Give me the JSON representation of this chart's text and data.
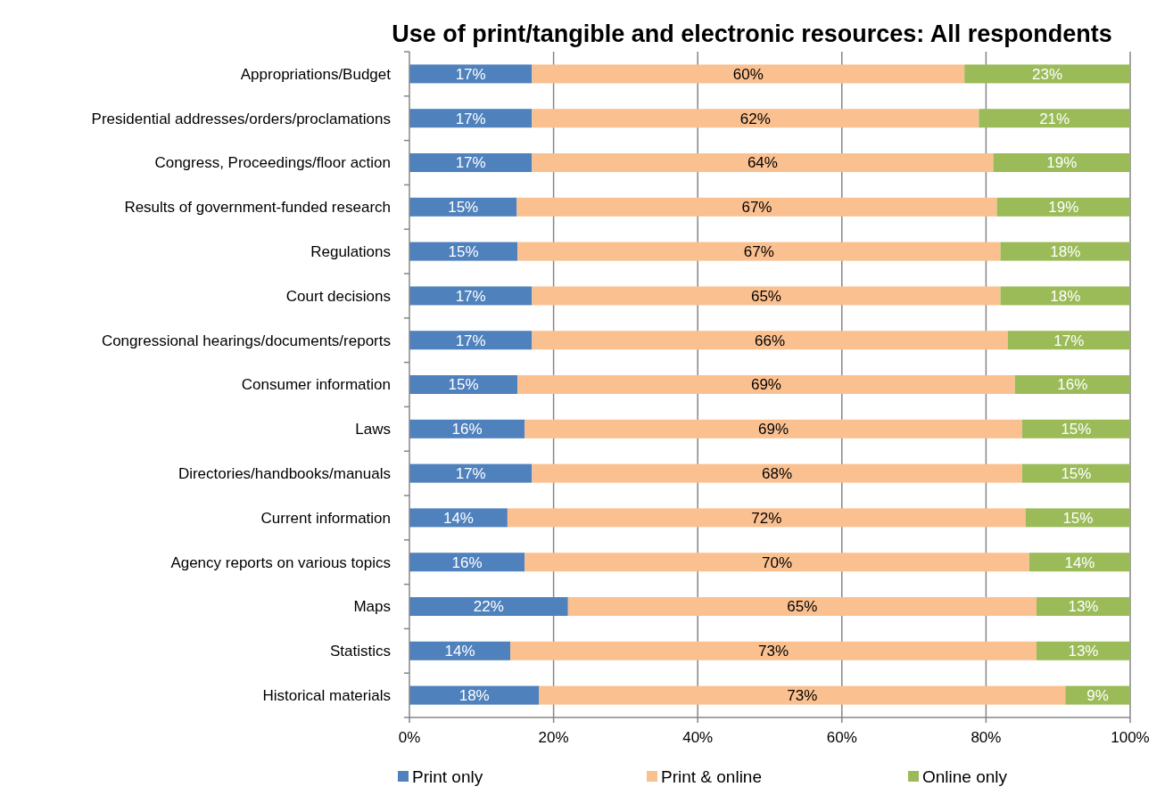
{
  "chart_data": {
    "type": "bar",
    "orientation": "horizontal",
    "stacked": true,
    "title": "Use of print/tangible and electronic resources: All respondents",
    "categories": [
      "Appropriations/Budget",
      "Presidential addresses/orders/proclamations",
      "Congress, Proceedings/floor action",
      "Results of government-funded research",
      "Regulations",
      "Court decisions",
      "Congressional hearings/documents/reports",
      "Consumer information",
      "Laws",
      "Directories/handbooks/manuals",
      "Current information",
      "Agency reports on various topics",
      "Maps",
      "Statistics",
      "Historical materials"
    ],
    "series": [
      {
        "name": "Print only",
        "color": "#4f81bd",
        "values": [
          17,
          17,
          17,
          14.9,
          15,
          17,
          17,
          15,
          16,
          17,
          13.6,
          16,
          22,
          14,
          18
        ],
        "value_labels": [
          "17%",
          "17%",
          "17%",
          "15%",
          "15%",
          "17%",
          "17%",
          "15%",
          "16%",
          "17%",
          "14%",
          "16%",
          "22%",
          "14%",
          "18%"
        ]
      },
      {
        "name": "Print & online",
        "color": "#fac090",
        "values": [
          60,
          62,
          64,
          66.6,
          67,
          65,
          66,
          69,
          69,
          68,
          71.9,
          70,
          65,
          73,
          73
        ],
        "value_labels": [
          "60%",
          "62%",
          "64%",
          "67%",
          "67%",
          "65%",
          "66%",
          "69%",
          "69%",
          "68%",
          "72%",
          "70%",
          "65%",
          "73%",
          "73%"
        ]
      },
      {
        "name": "Online only",
        "color": "#9bbb59",
        "values": [
          23,
          21,
          19,
          18.5,
          18,
          18,
          17,
          16,
          15,
          15,
          14.5,
          14,
          13,
          13,
          9
        ],
        "value_labels": [
          "23%",
          "21%",
          "19%",
          "19%",
          "18%",
          "18%",
          "17%",
          "16%",
          "15%",
          "15%",
          "15%",
          "14%",
          "13%",
          "13%",
          "9%"
        ]
      }
    ],
    "xlim": [
      0,
      100
    ],
    "xticks": [
      {
        "value": 0,
        "label": "0%"
      },
      {
        "value": 20,
        "label": "20%"
      },
      {
        "value": 40,
        "label": "40%"
      },
      {
        "value": 60,
        "label": "60%"
      },
      {
        "value": 80,
        "label": "80%"
      },
      {
        "value": 100,
        "label": "100%"
      }
    ],
    "grid": "x",
    "legend": "bottom"
  }
}
